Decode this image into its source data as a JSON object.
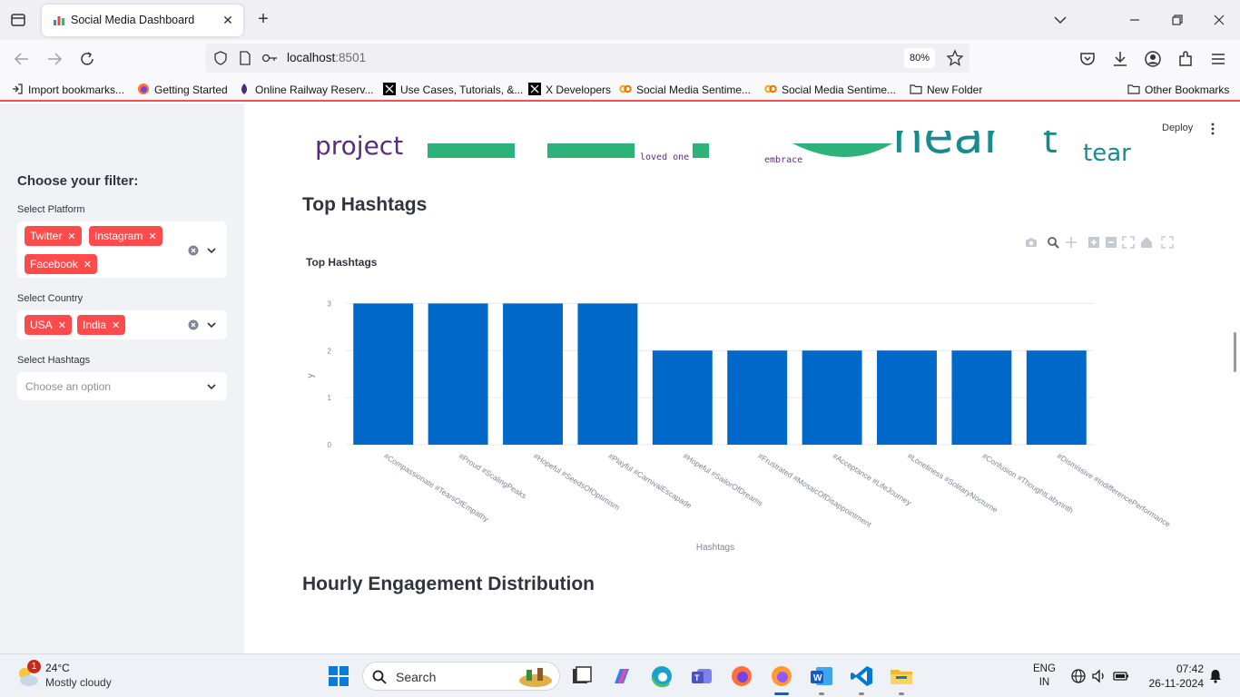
{
  "browser": {
    "tab_title": "Social Media Dashboard",
    "url_host": "localhost",
    "url_port": ":8501",
    "zoom": "80%",
    "bookmarks": [
      "Import bookmarks...",
      "Getting Started",
      "Online Railway Reserv...",
      "Use Cases, Tutorials, &...",
      "X Developers",
      "Social Media Sentime...",
      "Social Media Sentime...",
      "New Folder"
    ],
    "other_bookmarks": "Other Bookmarks"
  },
  "app": {
    "deploy_label": "Deploy",
    "sidebar": {
      "heading": "Choose your filter:",
      "platform_label": "Select Platform",
      "platforms": [
        "Twitter",
        "Instagram",
        "Facebook"
      ],
      "country_label": "Select Country",
      "countries": [
        "USA",
        "India"
      ],
      "hashtags_label": "Select Hashtags",
      "hashtags_placeholder": "Choose an option"
    },
    "wordcloud_words": [
      "project",
      "loved one",
      "embrace",
      "tear"
    ],
    "section_top_hashtags": "Top Hashtags",
    "section_hourly": "Hourly Engagement Distribution"
  },
  "chart_data": {
    "type": "bar",
    "title": "Top Hashtags",
    "xlabel": "Hashtags",
    "ylabel": "y",
    "ylim": [
      0,
      3.2
    ],
    "yticks": [
      0,
      1,
      2,
      3
    ],
    "categories": [
      "#Compassionate #TearsOfEmpathy",
      "#Proud #ScalingPeaks",
      "#Hopeful #SeedsOfOptimism",
      "#Playful #CarnivalEscapade",
      "#Hopeful #SailorOfDreams",
      "#Frustrated #MosaicOfDisappointment",
      "#Acceptance #LifeJourney",
      "#Loneliness #SolitaryNocturne",
      "#Confusion #ThoughtLabyrinth",
      "#Dismissive #IndifferencePerformance"
    ],
    "values": [
      3,
      3,
      3,
      3,
      2,
      2,
      2,
      2,
      2,
      2
    ],
    "bar_color": "#0068c9"
  },
  "taskbar": {
    "weather_badge": "1",
    "temperature": "24°C",
    "weather": "Mostly cloudy",
    "search": "Search",
    "lang_top": "ENG",
    "lang_bottom": "IN",
    "time": "07:42",
    "date": "26-11-2024"
  },
  "colors": {
    "accent": "#ff4b4b",
    "sidebar_bg": "#f0f2f6",
    "wordcloud_green": "#2db37a",
    "wordcloud_teal": "#1b8a8a",
    "wordcloud_purple": "#5b2b82"
  }
}
